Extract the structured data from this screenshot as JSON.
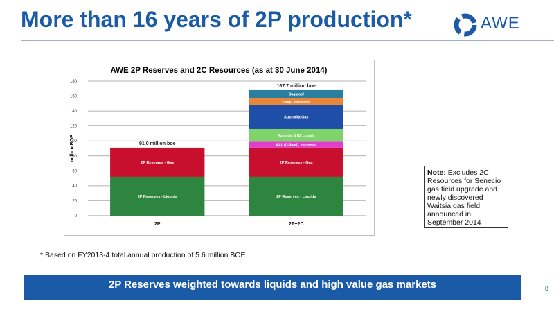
{
  "slide": {
    "title": "More than 16 years of 2P production*",
    "logo_text": "AWE",
    "footnote": "* Based on FY2013-4 total annual production of 5.6 million BOE",
    "banner": "2P Reserves weighted towards liquids and high value gas markets",
    "page_number": "8",
    "note_label": "Note:",
    "note_text": " Excludes 2C Resources for Senecio gas field upgrade and newly discovered Waitsia gas field, announced in September 2014",
    "accent_color": "#1a5aa6"
  },
  "chart_data": {
    "type": "bar",
    "stacked": true,
    "title": "AWE 2P Reserves and 2C Resources (as at 30 June 2014)",
    "ylabel": "million BOE",
    "xlabel": "",
    "ylim": [
      0,
      180
    ],
    "yticks": [
      0,
      20,
      40,
      60,
      80,
      100,
      120,
      140,
      160,
      180
    ],
    "grid": true,
    "categories": [
      "2P",
      "2P+2C"
    ],
    "totals": [
      "91.0 million boe",
      "167.7 million boe"
    ],
    "series": [
      {
        "name": "2P Reserves - Liquids",
        "color": "#2e8540",
        "values": [
          52,
          52
        ]
      },
      {
        "name": "2P Reserves - Gas",
        "color": "#c8102e",
        "values": [
          39,
          39
        ]
      },
      {
        "name": "AAL (Q-Sand), Indonesia",
        "color": "#e040c8",
        "values": [
          0,
          8
        ]
      },
      {
        "name": "Australia & NZ Liquids",
        "color": "#7ed36a",
        "values": [
          0,
          17
        ]
      },
      {
        "name": "Australia Gas",
        "color": "#1f4ea8",
        "values": [
          0,
          32
        ]
      },
      {
        "name": "Lengo, Indonesia",
        "color": "#e8873a",
        "values": [
          0,
          9
        ]
      },
      {
        "name": "Bugaroof",
        "color": "#2a7fa0",
        "values": [
          0,
          11
        ]
      }
    ]
  }
}
